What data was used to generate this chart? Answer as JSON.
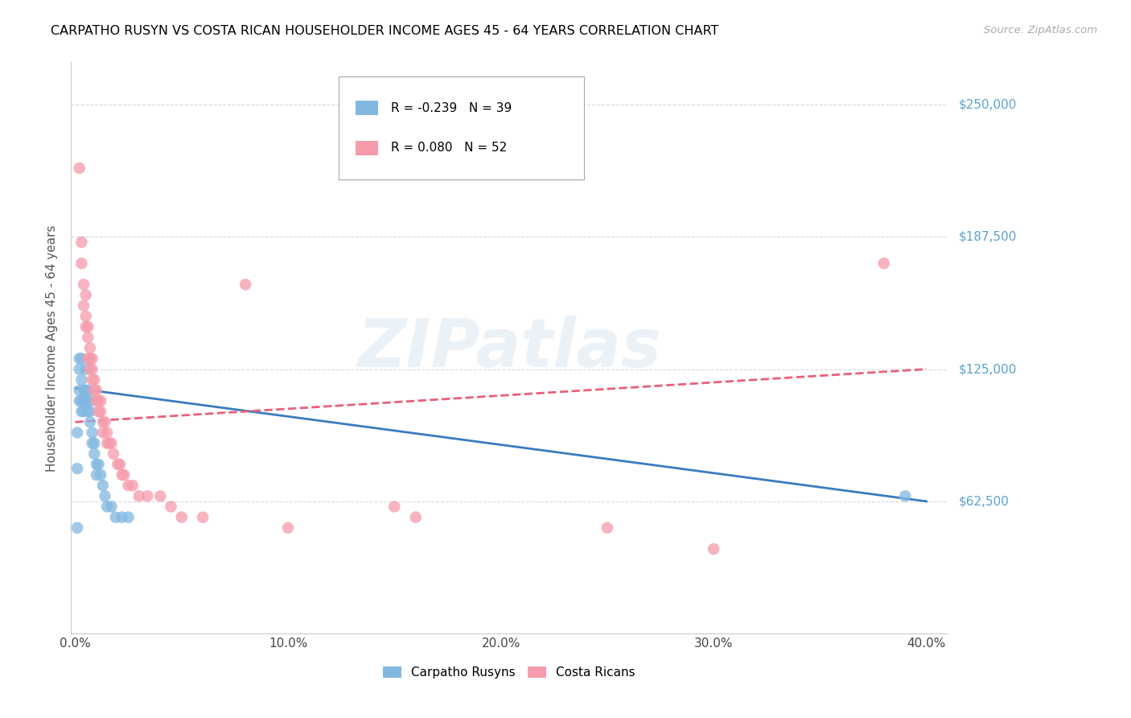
{
  "title": "CARPATHO RUSYN VS COSTA RICAN HOUSEHOLDER INCOME AGES 45 - 64 YEARS CORRELATION CHART",
  "source": "Source: ZipAtlas.com",
  "ylabel": "Householder Income Ages 45 - 64 years",
  "ytick_labels": [
    "$62,500",
    "$125,000",
    "$187,500",
    "$250,000"
  ],
  "ytick_vals": [
    62500,
    125000,
    187500,
    250000
  ],
  "ylim": [
    0,
    270000
  ],
  "xlim": [
    -0.002,
    0.41
  ],
  "xtick_vals": [
    0.0,
    0.1,
    0.2,
    0.3,
    0.4
  ],
  "xtick_labels": [
    "0.0%",
    "10.0%",
    "20.0%",
    "30.0%",
    "40.0%"
  ],
  "blue_color": "#82b8e0",
  "pink_color": "#f59bab",
  "blue_line_color": "#3a7bbf",
  "pink_line_color": "#e8607a",
  "legend_blue_label": "Carpatho Rusyns",
  "legend_pink_label": "Costa Ricans",
  "R_blue": -0.239,
  "N_blue": 39,
  "R_pink": 0.08,
  "N_pink": 52,
  "watermark": "ZIPatlas",
  "blue_scatter_x": [
    0.001,
    0.001,
    0.002,
    0.002,
    0.002,
    0.002,
    0.003,
    0.003,
    0.003,
    0.003,
    0.004,
    0.004,
    0.004,
    0.005,
    0.005,
    0.005,
    0.006,
    0.006,
    0.006,
    0.007,
    0.007,
    0.007,
    0.008,
    0.008,
    0.009,
    0.009,
    0.01,
    0.01,
    0.011,
    0.012,
    0.013,
    0.014,
    0.015,
    0.017,
    0.019,
    0.022,
    0.025,
    0.39,
    0.001
  ],
  "blue_scatter_y": [
    95000,
    78000,
    130000,
    125000,
    115000,
    110000,
    130000,
    120000,
    110000,
    105000,
    115000,
    110000,
    105000,
    125000,
    115000,
    110000,
    115000,
    110000,
    105000,
    110000,
    105000,
    100000,
    95000,
    90000,
    90000,
    85000,
    80000,
    75000,
    80000,
    75000,
    70000,
    65000,
    60000,
    60000,
    55000,
    55000,
    55000,
    65000,
    50000
  ],
  "pink_scatter_x": [
    0.002,
    0.003,
    0.003,
    0.004,
    0.004,
    0.005,
    0.005,
    0.005,
    0.006,
    0.006,
    0.006,
    0.007,
    0.007,
    0.007,
    0.008,
    0.008,
    0.008,
    0.009,
    0.009,
    0.01,
    0.01,
    0.011,
    0.011,
    0.012,
    0.012,
    0.013,
    0.013,
    0.014,
    0.015,
    0.015,
    0.016,
    0.017,
    0.018,
    0.02,
    0.021,
    0.022,
    0.023,
    0.025,
    0.027,
    0.03,
    0.034,
    0.04,
    0.045,
    0.05,
    0.06,
    0.08,
    0.1,
    0.15,
    0.16,
    0.25,
    0.3,
    0.38
  ],
  "pink_scatter_y": [
    220000,
    185000,
    175000,
    165000,
    155000,
    160000,
    150000,
    145000,
    145000,
    140000,
    130000,
    135000,
    130000,
    125000,
    130000,
    125000,
    120000,
    120000,
    115000,
    115000,
    110000,
    110000,
    105000,
    110000,
    105000,
    100000,
    95000,
    100000,
    95000,
    90000,
    90000,
    90000,
    85000,
    80000,
    80000,
    75000,
    75000,
    70000,
    70000,
    65000,
    65000,
    65000,
    60000,
    55000,
    55000,
    165000,
    50000,
    60000,
    55000,
    50000,
    40000,
    175000
  ]
}
